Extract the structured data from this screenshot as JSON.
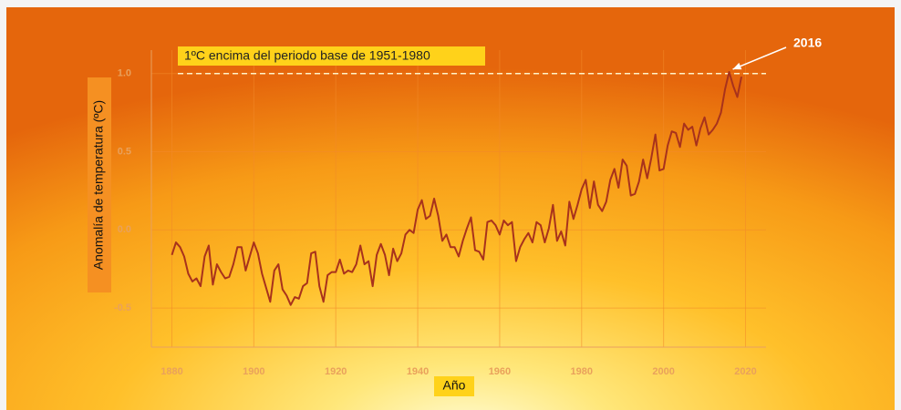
{
  "chart_data": {
    "type": "line",
    "annotation": "1ºC encima del periodo base de 1951-1980",
    "reference_line": 1.0,
    "callout": {
      "text": "2016",
      "x": 2016,
      "y": 1.01
    },
    "ylabel": "Anomalía de temperatura (ºC)",
    "xlabel": "Año",
    "color": "#a8321c",
    "grid": true,
    "xlim": [
      1875,
      2025
    ],
    "ylim": [
      -0.75,
      1.15
    ],
    "xticks": [
      1880,
      1900,
      1920,
      1940,
      1960,
      1980,
      2000,
      2020
    ],
    "yticks": [
      {
        "value": 1.0,
        "label": "1.0"
      },
      0.5,
      {
        "value": 0.0,
        "label": "0.0"
      },
      -0.5
    ],
    "x": [
      1880,
      1881,
      1882,
      1883,
      1884,
      1885,
      1886,
      1887,
      1888,
      1889,
      1890,
      1891,
      1892,
      1893,
      1894,
      1895,
      1896,
      1897,
      1898,
      1899,
      1900,
      1901,
      1902,
      1903,
      1904,
      1905,
      1906,
      1907,
      1908,
      1909,
      1910,
      1911,
      1912,
      1913,
      1914,
      1915,
      1916,
      1917,
      1918,
      1919,
      1920,
      1921,
      1922,
      1923,
      1924,
      1925,
      1926,
      1927,
      1928,
      1929,
      1930,
      1931,
      1932,
      1933,
      1934,
      1935,
      1936,
      1937,
      1938,
      1939,
      1940,
      1941,
      1942,
      1943,
      1944,
      1945,
      1946,
      1947,
      1948,
      1949,
      1950,
      1951,
      1952,
      1953,
      1954,
      1955,
      1956,
      1957,
      1958,
      1959,
      1960,
      1961,
      1962,
      1963,
      1964,
      1965,
      1966,
      1967,
      1968,
      1969,
      1970,
      1971,
      1972,
      1973,
      1974,
      1975,
      1976,
      1977,
      1978,
      1979,
      1980,
      1981,
      1982,
      1983,
      1984,
      1985,
      1986,
      1987,
      1988,
      1989,
      1990,
      1991,
      1992,
      1993,
      1994,
      1995,
      1996,
      1997,
      1998,
      1999,
      2000,
      2001,
      2002,
      2003,
      2004,
      2005,
      2006,
      2007,
      2008,
      2009,
      2010,
      2011,
      2012,
      2013,
      2014,
      2015,
      2016,
      2017,
      2018,
      2019
    ],
    "values": [
      -0.16,
      -0.08,
      -0.11,
      -0.17,
      -0.28,
      -0.33,
      -0.31,
      -0.36,
      -0.17,
      -0.1,
      -0.35,
      -0.22,
      -0.27,
      -0.31,
      -0.3,
      -0.22,
      -0.11,
      -0.11,
      -0.26,
      -0.17,
      -0.08,
      -0.15,
      -0.28,
      -0.37,
      -0.46,
      -0.26,
      -0.22,
      -0.38,
      -0.42,
      -0.48,
      -0.43,
      -0.44,
      -0.36,
      -0.34,
      -0.15,
      -0.14,
      -0.36,
      -0.46,
      -0.29,
      -0.27,
      -0.27,
      -0.19,
      -0.28,
      -0.26,
      -0.27,
      -0.22,
      -0.1,
      -0.22,
      -0.2,
      -0.36,
      -0.16,
      -0.09,
      -0.16,
      -0.29,
      -0.12,
      -0.2,
      -0.15,
      -0.03,
      0.0,
      -0.02,
      0.13,
      0.19,
      0.07,
      0.09,
      0.2,
      0.09,
      -0.07,
      -0.03,
      -0.11,
      -0.11,
      -0.17,
      -0.07,
      0.01,
      0.08,
      -0.13,
      -0.14,
      -0.19,
      0.05,
      0.06,
      0.03,
      -0.03,
      0.06,
      0.03,
      0.05,
      -0.2,
      -0.11,
      -0.06,
      -0.02,
      -0.08,
      0.05,
      0.03,
      -0.08,
      0.01,
      0.16,
      -0.07,
      -0.01,
      -0.1,
      0.18,
      0.07,
      0.16,
      0.26,
      0.32,
      0.14,
      0.31,
      0.16,
      0.12,
      0.18,
      0.32,
      0.39,
      0.27,
      0.45,
      0.41,
      0.22,
      0.23,
      0.31,
      0.45,
      0.33,
      0.46,
      0.61,
      0.38,
      0.39,
      0.54,
      0.63,
      0.62,
      0.53,
      0.68,
      0.64,
      0.66,
      0.54,
      0.65,
      0.72,
      0.61,
      0.64,
      0.68,
      0.75,
      0.9,
      1.01,
      0.92,
      0.85,
      0.98
    ]
  }
}
